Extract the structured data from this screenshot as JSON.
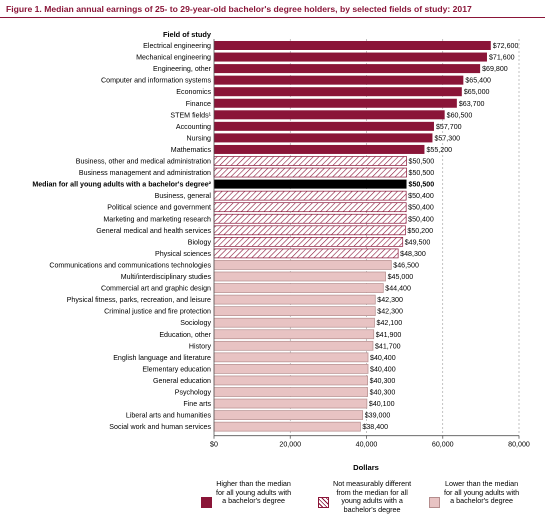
{
  "figure_title": "Figure 1.   Median annual earnings of 25- to 29-year-old bachelor's degree holders, by selected fields of study: 2017",
  "colors": {
    "title": "#8a1538",
    "higher": "#8a1538",
    "median": "#000000",
    "hatch": "#8a1538",
    "lower": "#e8c3c3",
    "lower_border": "#b48d8d",
    "axis": "#555555"
  },
  "chart_data": {
    "type": "bar",
    "orientation": "horizontal",
    "category_header": "Field of study",
    "xlabel": "Dollars",
    "xlim": [
      0,
      80000
    ],
    "x_ticks": [
      0,
      20000,
      40000,
      60000,
      80000
    ],
    "x_tick_labels": [
      "$0",
      "20,000",
      "40,000",
      "60,000",
      "80,000"
    ],
    "categories": [
      {
        "label": "Electrical engineering",
        "value": 72600,
        "value_label": "$72,600",
        "group": "higher"
      },
      {
        "label": "Mechanical engineering",
        "value": 71600,
        "value_label": "$71,600",
        "group": "higher"
      },
      {
        "label": "Engineering, other",
        "value": 69800,
        "value_label": "$69,800",
        "group": "higher"
      },
      {
        "label": "Computer and information systems",
        "value": 65400,
        "value_label": "$65,400",
        "group": "higher"
      },
      {
        "label": "Economics",
        "value": 65000,
        "value_label": "$65,000",
        "group": "higher"
      },
      {
        "label": "Finance",
        "value": 63700,
        "value_label": "$63,700",
        "group": "higher"
      },
      {
        "label": "STEM fields¹",
        "value": 60500,
        "value_label": "$60,500",
        "group": "higher"
      },
      {
        "label": "Accounting",
        "value": 57700,
        "value_label": "$57,700",
        "group": "higher"
      },
      {
        "label": "Nursing",
        "value": 57300,
        "value_label": "$57,300",
        "group": "higher"
      },
      {
        "label": "Mathematics",
        "value": 55200,
        "value_label": "$55,200",
        "group": "higher"
      },
      {
        "label": "Business, other and medical administration",
        "value": 50500,
        "value_label": "$50,500",
        "group": "not_different"
      },
      {
        "label": "Business management and administration",
        "value": 50500,
        "value_label": "$50,500",
        "group": "not_different"
      },
      {
        "label": "Median for all young adults with a bachelor's degree²",
        "value": 50500,
        "value_label": "$50,500",
        "group": "median"
      },
      {
        "label": "Business, general",
        "value": 50400,
        "value_label": "$50,400",
        "group": "not_different"
      },
      {
        "label": "Political science and government",
        "value": 50400,
        "value_label": "$50,400",
        "group": "not_different"
      },
      {
        "label": "Marketing and marketing research",
        "value": 50400,
        "value_label": "$50,400",
        "group": "not_different"
      },
      {
        "label": "General medical and health services",
        "value": 50200,
        "value_label": "$50,200",
        "group": "not_different"
      },
      {
        "label": "Biology",
        "value": 49500,
        "value_label": "$49,500",
        "group": "not_different"
      },
      {
        "label": "Physical sciences",
        "value": 48300,
        "value_label": "$48,300",
        "group": "not_different"
      },
      {
        "label": "Communications and communications technologies",
        "value": 46500,
        "value_label": "$46,500",
        "group": "lower"
      },
      {
        "label": "Multi/interdisciplinary studies",
        "value": 45000,
        "value_label": "$45,000",
        "group": "lower"
      },
      {
        "label": "Commercial art and graphic design",
        "value": 44400,
        "value_label": "$44,400",
        "group": "lower"
      },
      {
        "label": "Physical fitness, parks, recreation, and leisure",
        "value": 42300,
        "value_label": "$42,300",
        "group": "lower"
      },
      {
        "label": "Criminal justice and fire protection",
        "value": 42300,
        "value_label": "$42,300",
        "group": "lower"
      },
      {
        "label": "Sociology",
        "value": 42100,
        "value_label": "$42,100",
        "group": "lower"
      },
      {
        "label": "Education, other",
        "value": 41900,
        "value_label": "$41,900",
        "group": "lower"
      },
      {
        "label": "History",
        "value": 41700,
        "value_label": "$41,700",
        "group": "lower"
      },
      {
        "label": "English language and literature",
        "value": 40400,
        "value_label": "$40,400",
        "group": "lower"
      },
      {
        "label": "Elementary education",
        "value": 40400,
        "value_label": "$40,400",
        "group": "lower"
      },
      {
        "label": "General education",
        "value": 40300,
        "value_label": "$40,300",
        "group": "lower"
      },
      {
        "label": "Psychology",
        "value": 40300,
        "value_label": "$40,300",
        "group": "lower"
      },
      {
        "label": "Fine arts",
        "value": 40100,
        "value_label": "$40,100",
        "group": "lower"
      },
      {
        "label": "Liberal arts and humanities",
        "value": 39000,
        "value_label": "$39,000",
        "group": "lower"
      },
      {
        "label": "Social work and human services",
        "value": 38400,
        "value_label": "$38,400",
        "group": "lower"
      }
    ],
    "legend": [
      {
        "group": "higher",
        "lines": [
          "Higher than the median",
          "for all young adults with",
          "a bachelor's degree"
        ]
      },
      {
        "group": "not_different",
        "lines": [
          "Not measurably different",
          "from the median for all",
          "young adults with a",
          "bachelor's degree"
        ]
      },
      {
        "group": "lower",
        "lines": [
          "Lower than the median",
          "for all young adults with",
          "a bachelor's degree"
        ]
      }
    ]
  }
}
